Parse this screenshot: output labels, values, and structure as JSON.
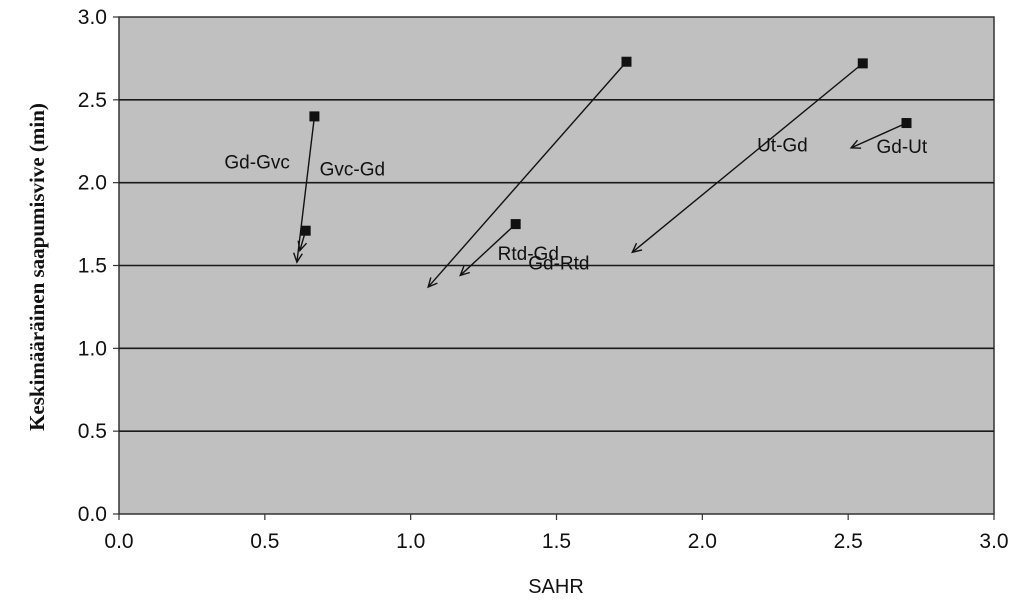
{
  "chart_data": {
    "type": "scatter",
    "title": "",
    "xlabel": "SAHR",
    "ylabel": "Keskimääräinen saapumisvive (min)",
    "xlim": [
      0.0,
      3.0
    ],
    "ylim": [
      0.0,
      3.0
    ],
    "x_ticks": [
      "0.0",
      "0.5",
      "1.0",
      "1.5",
      "2.0",
      "2.5",
      "3.0"
    ],
    "y_ticks": [
      "0.0",
      "0.5",
      "1.0",
      "1.5",
      "2.0",
      "2.5",
      "3.0"
    ],
    "grid": "horizontal",
    "legend": "none",
    "plot_background": "#c0c0c0",
    "series": [
      {
        "name": "Gd-Gvc",
        "from": [
          0.67,
          2.4
        ],
        "to": [
          0.61,
          1.52
        ]
      },
      {
        "name": "Gvc-Gd",
        "from": [
          0.64,
          1.71
        ],
        "to": [
          0.62,
          1.59
        ]
      },
      {
        "name": "Gd-Rtd",
        "from": [
          1.74,
          2.73
        ],
        "to": [
          1.06,
          1.37
        ]
      },
      {
        "name": "Rtd-Gd",
        "from": [
          1.36,
          1.75
        ],
        "to": [
          1.17,
          1.44
        ]
      },
      {
        "name": "Ut-Gd",
        "from": [
          2.55,
          2.72
        ],
        "to": [
          1.76,
          1.58
        ]
      },
      {
        "name": "Gd-Ut",
        "from": [
          2.7,
          2.36
        ],
        "to": [
          2.51,
          2.21
        ]
      }
    ]
  }
}
